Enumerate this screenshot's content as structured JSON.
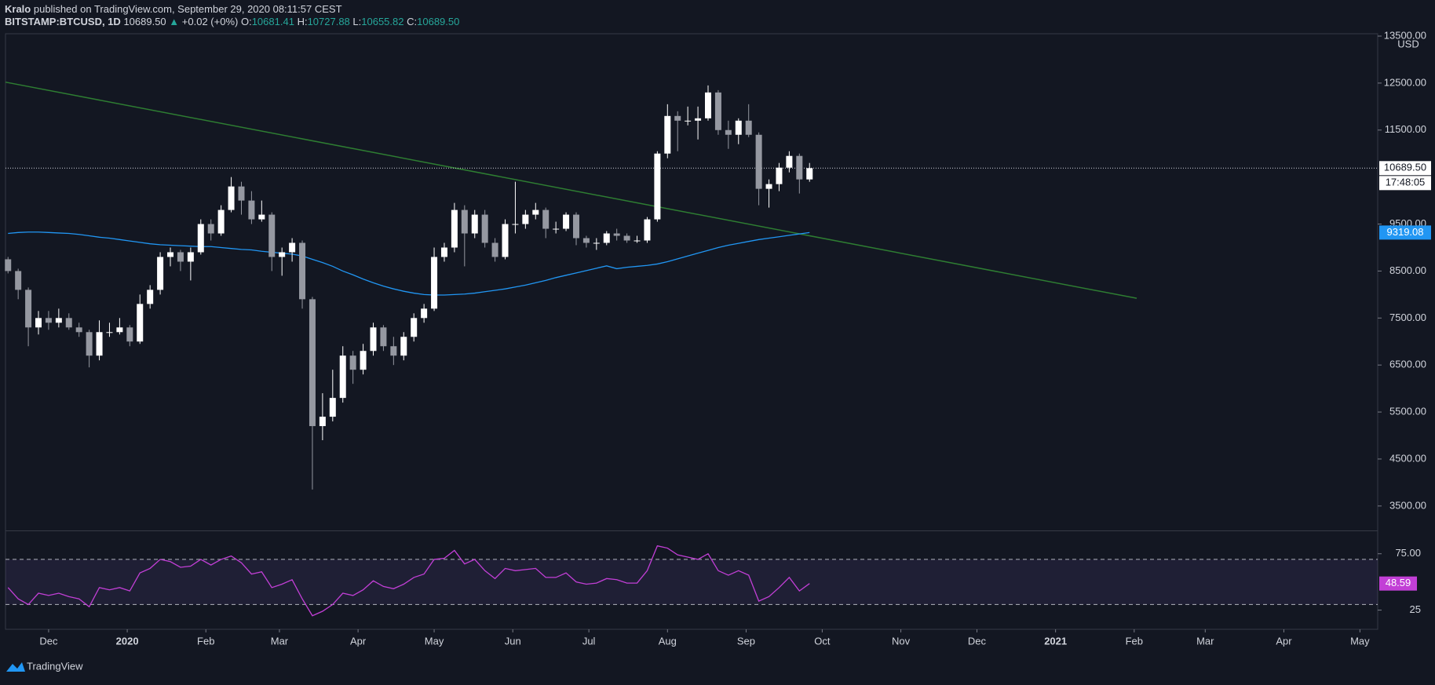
{
  "header": {
    "author": "Kralo",
    "published": "published on TradingView.com, September 29, 2020 08:11:57 CEST",
    "symbol": "BITSTAMP:BTCUSD, 1D",
    "last": "10689.50",
    "change": "+0.02 (+0%)",
    "open_label": "O:",
    "open": "10681.41",
    "high_label": "H:",
    "high": "10727.88",
    "low_label": "L:",
    "low": "10655.82",
    "close_label": "C:",
    "close": "10689.50"
  },
  "footer": "TradingView",
  "chart_data": {
    "type": "candlestick",
    "up_color": "#ffffff",
    "down_color": "#9598a1",
    "candles": [
      [
        8750,
        8800,
        8450,
        8500
      ],
      [
        8500,
        8550,
        7900,
        8100
      ],
      [
        8100,
        8150,
        6900,
        7300
      ],
      [
        7300,
        7650,
        7150,
        7500
      ],
      [
        7500,
        7650,
        7250,
        7400
      ],
      [
        7400,
        7700,
        7300,
        7500
      ],
      [
        7500,
        7600,
        7250,
        7300
      ],
      [
        7300,
        7400,
        7100,
        7200
      ],
      [
        7200,
        7250,
        6450,
        6700
      ],
      [
        6700,
        7450,
        6600,
        7200
      ],
      [
        7200,
        7400,
        7100,
        7200
      ],
      [
        7200,
        7500,
        7150,
        7300
      ],
      [
        7300,
        7350,
        6900,
        7000
      ],
      [
        7000,
        8000,
        6950,
        7800
      ],
      [
        7800,
        8200,
        7700,
        8100
      ],
      [
        8100,
        8900,
        8000,
        8800
      ],
      [
        8800,
        9000,
        8600,
        8900
      ],
      [
        8900,
        8950,
        8500,
        8700
      ],
      [
        8700,
        9000,
        8300,
        8900
      ],
      [
        8900,
        9600,
        8850,
        9500
      ],
      [
        9500,
        9600,
        9150,
        9300
      ],
      [
        9300,
        9900,
        9250,
        9800
      ],
      [
        9800,
        10500,
        9750,
        10300
      ],
      [
        10300,
        10400,
        9700,
        10000
      ],
      [
        10000,
        10200,
        9500,
        9600
      ],
      [
        9600,
        10000,
        9550,
        9700
      ],
      [
        9700,
        9750,
        8500,
        8800
      ],
      [
        8800,
        9000,
        8400,
        8900
      ],
      [
        8900,
        9200,
        8700,
        9100
      ],
      [
        9100,
        9150,
        7700,
        7900
      ],
      [
        7900,
        7950,
        3850,
        5200
      ],
      [
        5200,
        5900,
        4900,
        5400
      ],
      [
        5400,
        6400,
        5300,
        5800
      ],
      [
        5800,
        6900,
        5700,
        6700
      ],
      [
        6700,
        6800,
        6100,
        6400
      ],
      [
        6400,
        6950,
        6300,
        6800
      ],
      [
        6800,
        7400,
        6700,
        7300
      ],
      [
        7300,
        7350,
        6800,
        6900
      ],
      [
        6900,
        7100,
        6500,
        6700
      ],
      [
        6700,
        7200,
        6600,
        7100
      ],
      [
        7100,
        7600,
        7000,
        7500
      ],
      [
        7500,
        7800,
        7400,
        7700
      ],
      [
        7700,
        9000,
        7650,
        8800
      ],
      [
        8800,
        9100,
        8700,
        9000
      ],
      [
        9000,
        9950,
        8900,
        9800
      ],
      [
        9800,
        9900,
        8600,
        9300
      ],
      [
        9300,
        9800,
        9200,
        9700
      ],
      [
        9700,
        9800,
        9000,
        9100
      ],
      [
        9100,
        9200,
        8700,
        8800
      ],
      [
        8800,
        9600,
        8750,
        9500
      ],
      [
        9500,
        10400,
        9300,
        9500
      ],
      [
        9500,
        9800,
        9400,
        9700
      ],
      [
        9700,
        9950,
        9600,
        9800
      ],
      [
        9800,
        9850,
        9200,
        9400
      ],
      [
        9400,
        9550,
        9300,
        9400
      ],
      [
        9400,
        9750,
        9350,
        9700
      ],
      [
        9700,
        9750,
        9050,
        9200
      ],
      [
        9200,
        9250,
        9000,
        9100
      ],
      [
        9100,
        9200,
        8950,
        9100
      ],
      [
        9100,
        9350,
        9050,
        9300
      ],
      [
        9300,
        9400,
        9150,
        9250
      ],
      [
        9250,
        9300,
        9100,
        9150
      ],
      [
        9150,
        9250,
        9100,
        9150
      ],
      [
        9150,
        9650,
        9100,
        9600
      ],
      [
        9600,
        11050,
        9550,
        11000
      ],
      [
        11000,
        12050,
        10900,
        11800
      ],
      [
        11800,
        11900,
        11050,
        11700
      ],
      [
        11700,
        12000,
        11600,
        11700
      ],
      [
        11700,
        12000,
        11300,
        11750
      ],
      [
        11750,
        12450,
        11700,
        12300
      ],
      [
        12300,
        12350,
        11400,
        11500
      ],
      [
        11500,
        11700,
        11100,
        11400
      ],
      [
        11400,
        11750,
        11200,
        11700
      ],
      [
        11700,
        12050,
        11350,
        11400
      ],
      [
        11400,
        11450,
        9900,
        10250
      ],
      [
        10250,
        10450,
        9850,
        10350
      ],
      [
        10350,
        10800,
        10200,
        10700
      ],
      [
        10700,
        11050,
        10600,
        10950
      ],
      [
        10950,
        11000,
        10150,
        10450
      ],
      [
        10450,
        10800,
        10400,
        10689.5
      ]
    ],
    "xlim": [
      -0.25,
      135
    ],
    "xticks": [
      {
        "value": 4,
        "label": "Dec"
      },
      {
        "value": 11.75,
        "label": "2020"
      },
      {
        "value": 19.5,
        "label": "Feb"
      },
      {
        "value": 26.75,
        "label": "Mar"
      },
      {
        "value": 34.5,
        "label": "Apr"
      },
      {
        "value": 42,
        "label": "May"
      },
      {
        "value": 49.75,
        "label": "Jun"
      },
      {
        "value": 57.25,
        "label": "Jul"
      },
      {
        "value": 65,
        "label": "Aug"
      },
      {
        "value": 72.75,
        "label": "Sep"
      },
      {
        "value": 80.25,
        "label": "Oct"
      },
      {
        "value": 88,
        "label": "Nov"
      },
      {
        "value": 95.5,
        "label": "Dec"
      },
      {
        "value": 103.25,
        "label": "2021"
      },
      {
        "value": 111,
        "label": "Feb"
      },
      {
        "value": 118,
        "label": "Mar"
      },
      {
        "value": 125.75,
        "label": "Apr"
      },
      {
        "value": 133.25,
        "label": "May"
      }
    ],
    "ylim": [
      2980,
      13550
    ],
    "yticks": [
      {
        "value": 3500,
        "label": "3500.00"
      },
      {
        "value": 4500,
        "label": "4500.00"
      },
      {
        "value": 5500,
        "label": "5500.00"
      },
      {
        "value": 6500,
        "label": "6500.00"
      },
      {
        "value": 7500,
        "label": "7500.00"
      },
      {
        "value": 8500,
        "label": "8500.00"
      },
      {
        "value": 9500,
        "label": "9500.00"
      },
      {
        "value": 11500,
        "label": "11500.00"
      },
      {
        "value": 12500,
        "label": "12500.00"
      },
      {
        "value": 13500,
        "label": "13500.00"
      }
    ],
    "y_unit": "USD",
    "last_price": {
      "value": 10689.5,
      "label": "10689.50"
    },
    "countdown": "17:48:05",
    "ma": {
      "color": "#2196f3",
      "values": [
        9300,
        9320,
        9330,
        9330,
        9320,
        9310,
        9300,
        9280,
        9250,
        9220,
        9200,
        9170,
        9140,
        9110,
        9080,
        9060,
        9050,
        9040,
        9030,
        9020,
        9020,
        9000,
        8980,
        8960,
        8950,
        8920,
        8900,
        8880,
        8860,
        8820,
        8750,
        8680,
        8600,
        8500,
        8420,
        8330,
        8250,
        8180,
        8120,
        8070,
        8030,
        8000,
        7990,
        7990,
        8000,
        8010,
        8030,
        8060,
        8090,
        8120,
        8160,
        8200,
        8250,
        8300,
        8360,
        8410,
        8460,
        8510,
        8560,
        8610,
        8550,
        8580,
        8600,
        8620,
        8650,
        8700,
        8760,
        8820,
        8880,
        8940,
        9000,
        9050,
        9090,
        9130,
        9170,
        9200,
        9230,
        9260,
        9290,
        9319.08
      ]
    },
    "trendline": {
      "color": "#2e7d32",
      "x": [
        -0.25,
        111.25
      ],
      "values": [
        12520,
        7920
      ]
    },
    "rsi": {
      "color": "#c23fd6",
      "band": [
        30,
        70
      ],
      "band_color": "#7e57c2",
      "ylim": [
        8,
        95
      ],
      "yticks": [
        25,
        {
          "value": 75,
          "label": "75.00"
        }
      ],
      "values": [
        45,
        35,
        30,
        40,
        38,
        40,
        37,
        35,
        28,
        45,
        43,
        45,
        42,
        58,
        62,
        70,
        68,
        63,
        64,
        70,
        65,
        70,
        73,
        67,
        57,
        59,
        45,
        48,
        52,
        35,
        20,
        24,
        30,
        40,
        38,
        43,
        51,
        46,
        44,
        48,
        54,
        57,
        70,
        71,
        78,
        66,
        70,
        60,
        53,
        62,
        60,
        61,
        62,
        54,
        54,
        58,
        50,
        48,
        49,
        53,
        52,
        49,
        49,
        60,
        82,
        80,
        74,
        72,
        70,
        75,
        60,
        56,
        60,
        56,
        33,
        37,
        45,
        54,
        42,
        48.59
      ]
    }
  }
}
